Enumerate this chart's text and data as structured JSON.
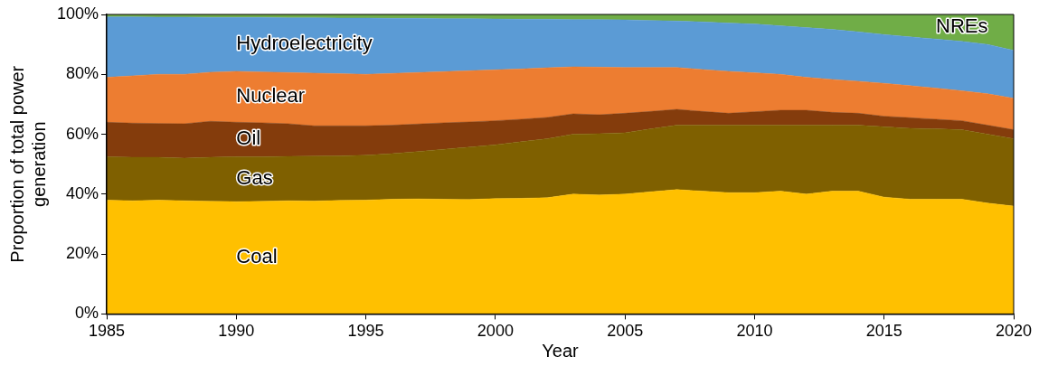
{
  "chart_data": {
    "type": "area",
    "stacked": true,
    "xlabel": "Year",
    "ylabel": "Proportion of total power generation",
    "x": [
      1985,
      1986,
      1987,
      1988,
      1989,
      1990,
      1991,
      1992,
      1993,
      1994,
      1995,
      1996,
      1997,
      1998,
      1999,
      2000,
      2001,
      2002,
      2003,
      2004,
      2005,
      2006,
      2007,
      2008,
      2009,
      2010,
      2011,
      2012,
      2013,
      2014,
      2015,
      2016,
      2017,
      2018,
      2019,
      2020
    ],
    "series": [
      {
        "name": "Coal",
        "color": "#ffc000",
        "values": [
          38.0,
          37.8,
          38.0,
          37.8,
          37.6,
          37.5,
          37.6,
          37.8,
          37.7,
          37.9,
          38.0,
          38.3,
          38.4,
          38.3,
          38.2,
          38.5,
          38.6,
          38.8,
          40.0,
          39.7,
          40.0,
          40.8,
          41.5,
          41.0,
          40.5,
          40.5,
          41.0,
          40.0,
          41.0,
          41.0,
          39.0,
          38.3,
          38.3,
          38.3,
          37.0,
          36.0
        ]
      },
      {
        "name": "Gas",
        "color": "#7f6000",
        "values": [
          14.5,
          14.5,
          14.3,
          14.2,
          14.7,
          15.0,
          14.9,
          14.8,
          15.0,
          14.9,
          15.0,
          15.2,
          15.8,
          16.7,
          17.5,
          18.0,
          18.9,
          19.7,
          20.0,
          20.5,
          20.5,
          21.0,
          21.5,
          22.0,
          22.5,
          22.5,
          22.0,
          23.0,
          22.0,
          22.0,
          23.5,
          23.7,
          23.5,
          23.2,
          23.0,
          22.5
        ]
      },
      {
        "name": "Oil",
        "color": "#843c0c",
        "values": [
          11.5,
          11.4,
          11.3,
          11.5,
          12.0,
          11.5,
          11.3,
          10.9,
          10.1,
          10.0,
          9.8,
          9.5,
          9.2,
          8.8,
          8.4,
          8.0,
          7.5,
          7.1,
          6.8,
          6.3,
          6.5,
          5.8,
          5.3,
          4.6,
          4.0,
          4.5,
          5.0,
          5.0,
          4.3,
          4.0,
          3.5,
          3.5,
          3.2,
          3.0,
          3.0,
          3.0
        ]
      },
      {
        "name": "Nuclear",
        "color": "#ed7d31",
        "values": [
          15.0,
          15.8,
          16.4,
          16.5,
          16.4,
          17.0,
          17.0,
          17.1,
          17.6,
          17.4,
          17.2,
          17.3,
          17.2,
          17.1,
          17.1,
          17.0,
          16.8,
          16.6,
          15.7,
          15.9,
          15.3,
          14.7,
          14.0,
          14.0,
          14.0,
          13.0,
          12.0,
          11.0,
          11.0,
          10.7,
          11.0,
          10.7,
          10.4,
          10.0,
          10.5,
          10.5
        ]
      },
      {
        "name": "Hydroelectricity",
        "color": "#5b9bd5",
        "values": [
          20.2,
          19.7,
          19.1,
          19.1,
          18.3,
          18.0,
          18.2,
          18.3,
          18.5,
          18.6,
          18.8,
          18.4,
          18.1,
          17.7,
          17.4,
          17.0,
          16.6,
          16.2,
          15.8,
          15.9,
          15.9,
          15.7,
          15.5,
          15.9,
          16.1,
          16.3,
          16.2,
          16.6,
          16.7,
          16.5,
          16.3,
          16.3,
          16.4,
          16.5,
          16.5,
          16.0
        ]
      },
      {
        "name": "NREs",
        "color": "#70ad47",
        "values": [
          0.8,
          0.8,
          0.9,
          0.9,
          1.0,
          1.0,
          1.0,
          1.1,
          1.1,
          1.2,
          1.2,
          1.3,
          1.3,
          1.4,
          1.4,
          1.5,
          1.6,
          1.6,
          1.7,
          1.7,
          1.8,
          2.0,
          2.2,
          2.5,
          2.9,
          3.2,
          3.8,
          4.4,
          5.0,
          5.8,
          6.7,
          7.5,
          8.2,
          9.0,
          10.0,
          12.0
        ]
      }
    ],
    "xlim": [
      1985,
      2020
    ],
    "xticks": [
      1985,
      1990,
      1995,
      2000,
      2005,
      2010,
      2015,
      2020
    ],
    "ylim": [
      0,
      100
    ],
    "yticks": [
      {
        "value": 0,
        "label": "0%"
      },
      {
        "value": 20,
        "label": "20%"
      },
      {
        "value": 40,
        "label": "40%"
      },
      {
        "value": 60,
        "label": "60%"
      },
      {
        "value": 80,
        "label": "80%"
      },
      {
        "value": 100,
        "label": "100%"
      }
    ],
    "grid": false,
    "legend": false
  }
}
